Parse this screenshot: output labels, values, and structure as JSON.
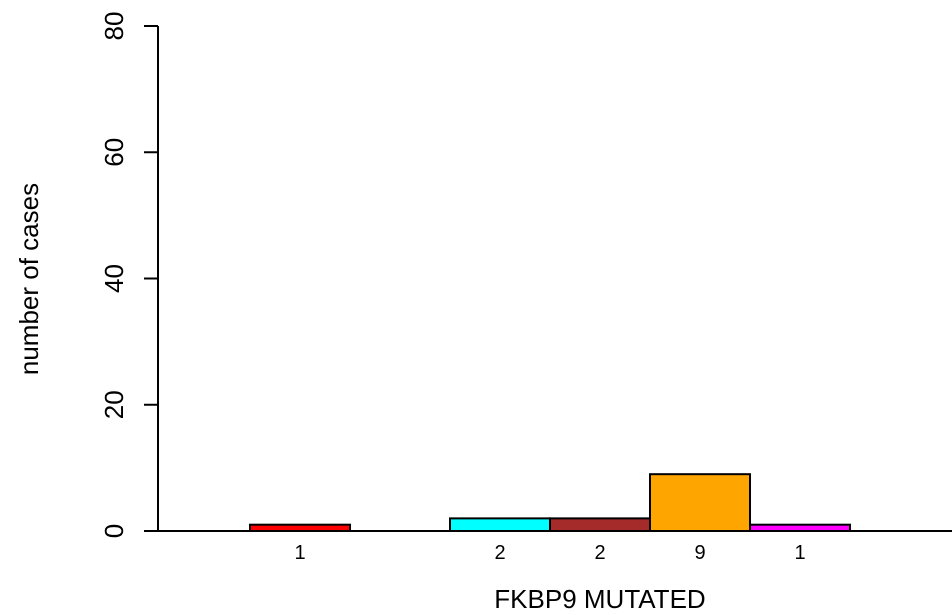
{
  "chart_data": {
    "type": "bar",
    "xlabel": "FKBP9 MUTATED",
    "ylabel": "number of cases",
    "ylim": [
      0,
      80
    ],
    "yticks": [
      0,
      20,
      40,
      60,
      80
    ],
    "grid": false,
    "bars": [
      {
        "slot": 0,
        "value": 1,
        "label": "1",
        "color": "#ff0000"
      },
      {
        "slot": 2,
        "value": 2,
        "label": "2",
        "color": "#00ffff"
      },
      {
        "slot": 3,
        "value": 2,
        "label": "2",
        "color": "#a52a2a"
      },
      {
        "slot": 4,
        "value": 9,
        "label": "9",
        "color": "#ffa500"
      },
      {
        "slot": 5,
        "value": 1,
        "label": "1",
        "color": "#ff00ff"
      }
    ]
  }
}
